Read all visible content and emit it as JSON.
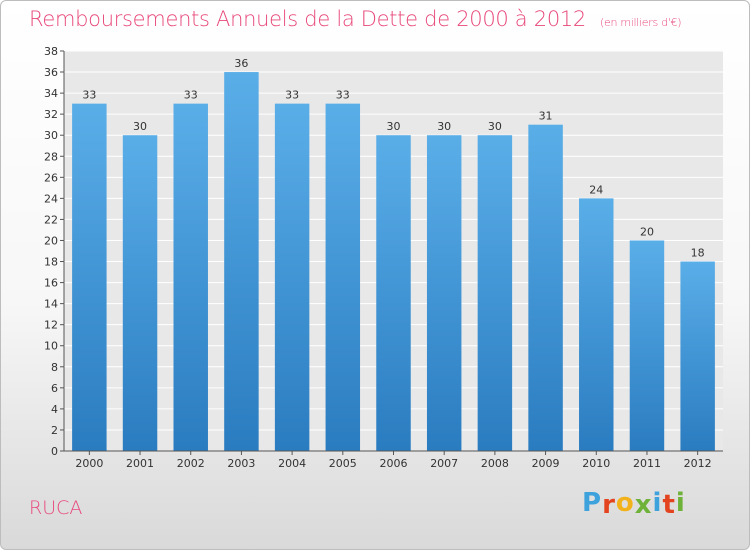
{
  "title": "Remboursements Annuels de la Dette de 2000 à 2012",
  "subtitle": "(en milliers d'€)",
  "commune": "RUCA",
  "logo": {
    "text": "Proxiti",
    "letters": [
      "P",
      "r",
      "o",
      "x",
      "i",
      "t",
      "i"
    ],
    "colors": [
      "#3ea3dc",
      "#e3431f",
      "#f2b21c",
      "#6fb23a",
      "#3ea3dc",
      "#e3431f",
      "#6fb23a"
    ]
  },
  "chart_data": {
    "type": "bar",
    "title": "Remboursements Annuels de la Dette de 2000 à 2012",
    "subtitle": "(en milliers d'€)",
    "xlabel": "",
    "ylabel": "",
    "categories": [
      "2000",
      "2001",
      "2002",
      "2003",
      "2004",
      "2005",
      "2006",
      "2007",
      "2008",
      "2009",
      "2010",
      "2011",
      "2012"
    ],
    "values": [
      33,
      30,
      33,
      36,
      33,
      33,
      30,
      30,
      30,
      31,
      24,
      20,
      18
    ],
    "ylim": [
      0,
      38
    ],
    "yticks": [
      0,
      2,
      4,
      6,
      8,
      10,
      12,
      14,
      16,
      18,
      20,
      22,
      24,
      26,
      28,
      30,
      32,
      34,
      36,
      38
    ],
    "grid": true,
    "legend": "none",
    "bar_color_top": "#5aaee8",
    "bar_color_bottom": "#2a7cc0",
    "plot_background": "#e8e8e8",
    "grid_color": "#ffffff"
  }
}
